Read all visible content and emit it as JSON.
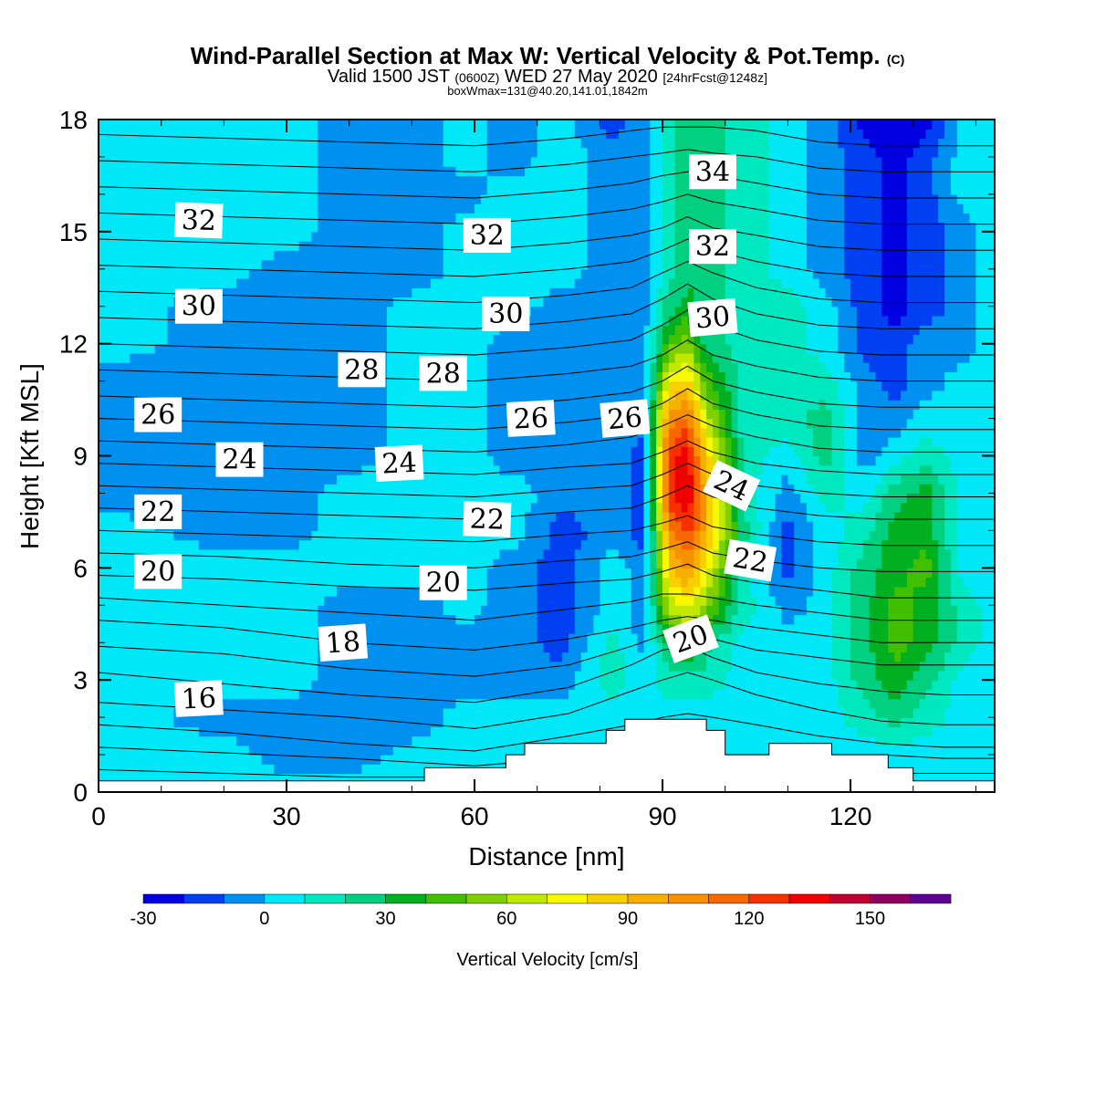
{
  "title": {
    "main": "Wind-Parallel Section at Max W: Vertical Velocity & Pot.Temp.",
    "copyright": "(C)",
    "valid_prefix": "Valid 1500 JST",
    "valid_utc": "(0600Z)",
    "valid_date": "WED 27 May 2020",
    "forecast": "[24hrFcst@1248z]",
    "box_info": "boxWmax=131@40.20,141.01,1842m"
  },
  "chart_data": {
    "type": "heatmap",
    "xlabel": "Distance [nm]",
    "ylabel": "Height [Kft MSL]",
    "xlim": [
      0,
      143
    ],
    "ylim": [
      0,
      18
    ],
    "x_ticks": [
      0,
      30,
      60,
      90,
      120
    ],
    "y_ticks": [
      0,
      3,
      6,
      9,
      12,
      15,
      18
    ],
    "colorbar": {
      "label": "Vertical Velocity [cm/s]",
      "boundaries": [
        -30,
        -20,
        -10,
        0,
        10,
        20,
        30,
        40,
        50,
        60,
        70,
        80,
        90,
        100,
        110,
        120,
        130,
        140,
        150,
        160,
        170
      ],
      "colors": [
        "#0000e0",
        "#0040f0",
        "#0090f0",
        "#00e8f8",
        "#00e8c0",
        "#00d080",
        "#00b020",
        "#40c000",
        "#80d000",
        "#c0e800",
        "#f8f800",
        "#f8d000",
        "#f8b000",
        "#f89000",
        "#f86800",
        "#f83000",
        "#f00000",
        "#c00030",
        "#900060",
        "#600090"
      ],
      "tick_labels": [
        "-30",
        "0",
        "30",
        "60",
        "90",
        "120",
        "150"
      ],
      "tick_values": [
        -30,
        0,
        30,
        60,
        90,
        120,
        150
      ]
    },
    "terrain": [
      [
        0,
        0.3
      ],
      [
        52,
        0.3
      ],
      [
        52,
        0.65
      ],
      [
        65,
        0.65
      ],
      [
        65,
        1.0
      ],
      [
        68,
        1.0
      ],
      [
        68,
        1.3
      ],
      [
        81,
        1.3
      ],
      [
        81,
        1.65
      ],
      [
        84,
        1.65
      ],
      [
        84,
        1.95
      ],
      [
        97,
        1.95
      ],
      [
        97,
        1.65
      ],
      [
        100,
        1.65
      ],
      [
        100,
        1.0
      ],
      [
        107,
        1.0
      ],
      [
        107,
        1.3
      ],
      [
        117,
        1.3
      ],
      [
        117,
        1.0
      ],
      [
        126,
        1.0
      ],
      [
        126,
        0.65
      ],
      [
        130,
        0.65
      ],
      [
        130,
        0.3
      ],
      [
        143,
        0.3
      ]
    ],
    "wfield": [
      {
        "x": 1,
        "w": [
          5,
          5,
          5,
          5,
          5,
          5,
          5,
          5,
          -5,
          -5,
          -5,
          -5,
          5,
          5,
          5,
          5,
          5,
          5,
          5
        ]
      },
      {
        "x": 20,
        "w": [
          5,
          5,
          -5,
          5,
          5,
          5,
          5,
          -5,
          -5,
          -5,
          -5,
          -5,
          -5,
          -5,
          5,
          5,
          5,
          5,
          5
        ]
      },
      {
        "x": 30,
        "w": [
          5,
          -5,
          -5,
          5,
          5,
          5,
          5,
          -5,
          -5,
          -5,
          -5,
          -5,
          -5,
          -5,
          -5,
          5,
          5,
          5,
          5
        ]
      },
      {
        "x": 40,
        "w": [
          5,
          -5,
          -5,
          -5,
          -5,
          -5,
          5,
          5,
          5,
          -5,
          -5,
          -5,
          -5,
          -5,
          -5,
          -5,
          -5,
          -5,
          -5
        ]
      },
      {
        "x": 52,
        "w": [
          5,
          5,
          -5,
          -5,
          -5,
          -5,
          5,
          5,
          5,
          5,
          5,
          5,
          5,
          5,
          -5,
          -5,
          -5,
          -5,
          -5
        ]
      },
      {
        "x": 58,
        "w": [
          5,
          5,
          5,
          -5,
          -5,
          5,
          5,
          5,
          5,
          5,
          5,
          5,
          5,
          5,
          5,
          5,
          -5,
          5,
          5
        ]
      },
      {
        "x": 66,
        "w": [
          5,
          5,
          5,
          -5,
          -5,
          -5,
          -5,
          5,
          5,
          -5,
          -5,
          -5,
          -5,
          5,
          5,
          5,
          5,
          -5,
          -5
        ]
      },
      {
        "x": 74,
        "w": [
          5,
          5,
          5,
          -5,
          -15,
          -15,
          -15,
          -15,
          -5,
          -5,
          -5,
          -5,
          -5,
          -5,
          5,
          5,
          5,
          5,
          5
        ]
      },
      {
        "x": 82,
        "w": [
          5,
          5,
          5,
          15,
          15,
          5,
          5,
          -5,
          -5,
          -5,
          -5,
          -5,
          -5,
          -5,
          -5,
          -5,
          -5,
          -5,
          -15
        ]
      },
      {
        "x": 87,
        "w": [
          5,
          5,
          5,
          5,
          -5,
          -5,
          -5,
          -15,
          -15,
          -15,
          -5,
          -5,
          -5,
          -5,
          -5,
          -5,
          -5,
          -5,
          -5
        ]
      },
      {
        "x": 91,
        "w": [
          5,
          5,
          5,
          15,
          35,
          65,
          85,
          105,
          125,
          125,
          105,
          75,
          45,
          25,
          15,
          15,
          15,
          15,
          15
        ]
      },
      {
        "x": 94,
        "w": [
          5,
          5,
          5,
          15,
          45,
          75,
          105,
          125,
          140,
          135,
          115,
          85,
          55,
          35,
          25,
          25,
          25,
          25,
          25
        ]
      },
      {
        "x": 97,
        "w": [
          5,
          5,
          5,
          15,
          25,
          55,
          75,
          95,
          95,
          85,
          65,
          45,
          25,
          25,
          25,
          25,
          25,
          25,
          25
        ]
      },
      {
        "x": 103,
        "w": [
          5,
          5,
          5,
          5,
          5,
          15,
          15,
          25,
          15,
          15,
          15,
          15,
          15,
          15,
          15,
          15,
          15,
          15,
          15
        ]
      },
      {
        "x": 110,
        "w": [
          5,
          5,
          5,
          5,
          5,
          -5,
          -15,
          -15,
          -5,
          5,
          15,
          15,
          15,
          15,
          5,
          5,
          5,
          5,
          5
        ]
      },
      {
        "x": 116,
        "w": [
          5,
          5,
          5,
          5,
          5,
          5,
          5,
          5,
          15,
          25,
          25,
          15,
          5,
          5,
          -5,
          -5,
          -5,
          -5,
          -5
        ]
      },
      {
        "x": 122,
        "w": [
          5,
          5,
          15,
          25,
          25,
          25,
          25,
          15,
          5,
          -5,
          -5,
          -5,
          -15,
          -15,
          -15,
          -15,
          -15,
          -15,
          -25
        ]
      },
      {
        "x": 127,
        "w": [
          5,
          5,
          25,
          35,
          45,
          45,
          35,
          35,
          25,
          5,
          -5,
          -15,
          -15,
          -25,
          -25,
          -25,
          -25,
          -25,
          -25
        ]
      },
      {
        "x": 132,
        "w": [
          5,
          5,
          15,
          25,
          35,
          35,
          45,
          35,
          35,
          15,
          5,
          -5,
          -5,
          -15,
          -15,
          -15,
          -15,
          -15,
          -25
        ]
      },
      {
        "x": 138,
        "w": [
          5,
          5,
          5,
          5,
          15,
          15,
          5,
          5,
          5,
          5,
          5,
          5,
          -5,
          -5,
          -5,
          -5,
          5,
          5,
          5
        ]
      },
      {
        "x": 143,
        "w": [
          5,
          5,
          5,
          5,
          5,
          5,
          5,
          5,
          5,
          5,
          5,
          5,
          5,
          5,
          5,
          5,
          5,
          5,
          5
        ]
      }
    ],
    "isentropes": {
      "x": [
        0,
        20,
        40,
        60,
        75,
        85,
        90,
        94,
        98,
        105,
        115,
        125,
        135,
        143
      ],
      "lines": [
        [
          0.6,
          0.5,
          0.4,
          0.4,
          0.5,
          0.5,
          0.5,
          0.5,
          0.5,
          0.5,
          0.5,
          0.5,
          0.5,
          0.5
        ],
        [
          1.2,
          1.05,
          0.9,
          0.7,
          0.9,
          1.0,
          1.0,
          1.0,
          1.0,
          1.0,
          1.0,
          1.0,
          0.9,
          0.9
        ],
        [
          1.8,
          1.6,
          1.3,
          1.1,
          1.5,
          1.8,
          2.0,
          2.1,
          2.0,
          1.8,
          1.5,
          1.3,
          1.2,
          1.2
        ],
        [
          2.4,
          2.2,
          2.0,
          1.7,
          2.1,
          2.7,
          3.0,
          3.2,
          3.0,
          2.6,
          2.2,
          1.9,
          1.8,
          1.8
        ],
        [
          3.2,
          2.9,
          2.6,
          2.4,
          2.8,
          3.4,
          3.8,
          3.9,
          3.6,
          3.2,
          2.9,
          2.7,
          2.6,
          2.6
        ],
        [
          3.9,
          3.7,
          3.3,
          3.1,
          3.4,
          3.9,
          4.2,
          4.3,
          4.1,
          3.8,
          3.6,
          3.4,
          3.4,
          3.4
        ],
        [
          4.6,
          4.4,
          4.0,
          3.8,
          4.1,
          4.4,
          4.6,
          4.7,
          4.6,
          4.4,
          4.2,
          4.0,
          4.0,
          4.0
        ],
        [
          5.2,
          5.0,
          4.8,
          4.6,
          4.9,
          5.1,
          5.3,
          5.3,
          5.2,
          5.0,
          4.8,
          4.6,
          4.6,
          4.6
        ],
        [
          5.8,
          5.7,
          5.5,
          5.4,
          5.6,
          5.7,
          5.9,
          6.1,
          5.8,
          5.6,
          5.4,
          5.2,
          5.2,
          5.2
        ],
        [
          6.4,
          6.3,
          6.1,
          6.0,
          6.2,
          6.3,
          6.5,
          6.7,
          6.4,
          6.2,
          6.0,
          5.9,
          5.9,
          5.9
        ],
        [
          7.0,
          6.9,
          6.8,
          6.7,
          6.9,
          7.0,
          7.2,
          7.4,
          7.1,
          6.9,
          6.7,
          6.6,
          6.6,
          6.6
        ],
        [
          7.6,
          7.5,
          7.4,
          7.3,
          7.5,
          7.6,
          7.9,
          8.2,
          7.9,
          7.6,
          7.4,
          7.3,
          7.3,
          7.3
        ],
        [
          8.2,
          8.1,
          8.0,
          7.9,
          8.1,
          8.2,
          8.5,
          8.8,
          8.5,
          8.2,
          8.0,
          7.9,
          7.9,
          7.9
        ],
        [
          8.8,
          8.7,
          8.6,
          8.5,
          8.7,
          8.8,
          9.1,
          9.4,
          9.1,
          8.8,
          8.6,
          8.5,
          8.5,
          8.5
        ],
        [
          9.4,
          9.3,
          9.2,
          9.1,
          9.3,
          9.5,
          9.8,
          10.1,
          9.8,
          9.5,
          9.2,
          9.1,
          9.1,
          9.1
        ],
        [
          10.0,
          9.9,
          9.8,
          9.7,
          9.9,
          10.1,
          10.4,
          10.8,
          10.4,
          10.1,
          9.8,
          9.7,
          9.7,
          9.7
        ],
        [
          10.6,
          10.5,
          10.4,
          10.3,
          10.5,
          10.7,
          11.0,
          11.4,
          11.0,
          10.7,
          10.4,
          10.3,
          10.3,
          10.3
        ],
        [
          11.3,
          11.2,
          11.1,
          11.0,
          11.2,
          11.4,
          11.7,
          12.1,
          11.7,
          11.4,
          11.1,
          11.0,
          11.0,
          11.0
        ],
        [
          12.0,
          11.9,
          11.8,
          11.7,
          11.9,
          12.1,
          12.5,
          12.9,
          12.5,
          12.1,
          11.8,
          11.7,
          11.7,
          11.7
        ],
        [
          12.7,
          12.6,
          12.5,
          12.4,
          12.6,
          12.8,
          13.2,
          13.6,
          13.2,
          12.8,
          12.5,
          12.4,
          12.4,
          12.4
        ],
        [
          13.4,
          13.3,
          13.2,
          13.1,
          13.3,
          13.5,
          13.9,
          14.2,
          13.9,
          13.5,
          13.2,
          13.1,
          13.1,
          13.1
        ],
        [
          14.1,
          14.0,
          13.9,
          13.8,
          14.0,
          14.2,
          14.5,
          14.8,
          14.5,
          14.2,
          13.9,
          13.8,
          13.8,
          13.8
        ],
        [
          14.8,
          14.7,
          14.6,
          14.5,
          14.7,
          14.9,
          15.1,
          15.4,
          15.1,
          14.9,
          14.6,
          14.5,
          14.5,
          14.5
        ],
        [
          15.5,
          15.4,
          15.3,
          15.2,
          15.4,
          15.6,
          15.8,
          16.0,
          15.8,
          15.6,
          15.3,
          15.2,
          15.2,
          15.2
        ],
        [
          16.2,
          16.1,
          16.0,
          15.9,
          16.1,
          16.3,
          16.5,
          16.6,
          16.5,
          16.3,
          16.0,
          15.9,
          15.9,
          15.9
        ],
        [
          16.9,
          16.8,
          16.7,
          16.6,
          16.8,
          17.0,
          17.1,
          17.2,
          17.1,
          17.0,
          16.7,
          16.6,
          16.6,
          16.6
        ],
        [
          17.6,
          17.5,
          17.4,
          17.3,
          17.5,
          17.7,
          17.8,
          17.8,
          17.8,
          17.7,
          17.4,
          17.3,
          17.3,
          17.3
        ]
      ]
    },
    "contour_labels": [
      {
        "text": "32",
        "x": 16,
        "y": 15.3,
        "rot": -2
      },
      {
        "text": "32",
        "x": 62,
        "y": 14.9,
        "rot": 0
      },
      {
        "text": "34",
        "x": 98,
        "y": 16.6,
        "rot": 0
      },
      {
        "text": "32",
        "x": 98,
        "y": 14.6,
        "rot": 0
      },
      {
        "text": "30",
        "x": 16,
        "y": 13.0,
        "rot": 0
      },
      {
        "text": "30",
        "x": 65,
        "y": 12.8,
        "rot": 0
      },
      {
        "text": "30",
        "x": 98,
        "y": 12.7,
        "rot": 5
      },
      {
        "text": "28",
        "x": 42,
        "y": 11.3,
        "rot": 0
      },
      {
        "text": "28",
        "x": 55,
        "y": 11.2,
        "rot": 0
      },
      {
        "text": "26",
        "x": 9.5,
        "y": 10.1,
        "rot": 0
      },
      {
        "text": "26",
        "x": 69,
        "y": 10.0,
        "rot": 3
      },
      {
        "text": "26",
        "x": 84,
        "y": 10.0,
        "rot": 5
      },
      {
        "text": "24",
        "x": 22.5,
        "y": 8.9,
        "rot": 0
      },
      {
        "text": "24",
        "x": 48,
        "y": 8.8,
        "rot": 3
      },
      {
        "text": "24",
        "x": 101,
        "y": 8.2,
        "rot": -25
      },
      {
        "text": "22",
        "x": 9.5,
        "y": 7.5,
        "rot": 0
      },
      {
        "text": "22",
        "x": 62,
        "y": 7.3,
        "rot": -2
      },
      {
        "text": "22",
        "x": 104,
        "y": 6.2,
        "rot": -10
      },
      {
        "text": "20",
        "x": 9.5,
        "y": 5.9,
        "rot": 0
      },
      {
        "text": "20",
        "x": 55,
        "y": 5.6,
        "rot": 0
      },
      {
        "text": "20",
        "x": 94.5,
        "y": 4.1,
        "rot": 20
      },
      {
        "text": "18",
        "x": 39,
        "y": 4.0,
        "rot": 4
      },
      {
        "text": "16",
        "x": 16,
        "y": 2.5,
        "rot": 3
      }
    ]
  }
}
